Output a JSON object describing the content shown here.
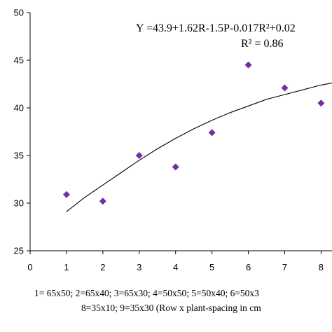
{
  "chart_data": {
    "type": "scatter",
    "x": [
      1,
      2,
      3,
      4,
      5,
      6,
      7,
      8
    ],
    "y": [
      30.9,
      30.2,
      35.0,
      33.8,
      37.4,
      44.5,
      42.1,
      40.5
    ],
    "xlim": [
      0,
      8.3
    ],
    "ylim": [
      25,
      50
    ],
    "xticks": [
      "0",
      "1",
      "2",
      "3",
      "4",
      "5",
      "6",
      "7",
      "8"
    ],
    "yticks": [
      "25",
      "30",
      "35",
      "40",
      "45",
      "50"
    ],
    "trendline": {
      "x": [
        1,
        1.5,
        2,
        2.5,
        3,
        3.5,
        4,
        4.5,
        5,
        5.5,
        6,
        6.5,
        7,
        7.5,
        8,
        8.3
      ],
      "y": [
        29.1,
        30.6,
        31.9,
        33.2,
        34.5,
        35.7,
        36.8,
        37.8,
        38.7,
        39.5,
        40.2,
        40.9,
        41.4,
        41.9,
        42.4,
        42.6
      ]
    },
    "equation": "Y =43.9+1.62R-1.5P-0.017R²+0.02",
    "r_squared": "R² = 0.86",
    "marker_color": "#7030a0",
    "grid": false
  },
  "caption": {
    "line1": "1= 65x50; 2=65x40; 3=65x30; 4=50x50; 5=50x40; 6=50x3",
    "line2": "8=35x10; 9=35x30  (Row x plant-spacing in cm"
  }
}
